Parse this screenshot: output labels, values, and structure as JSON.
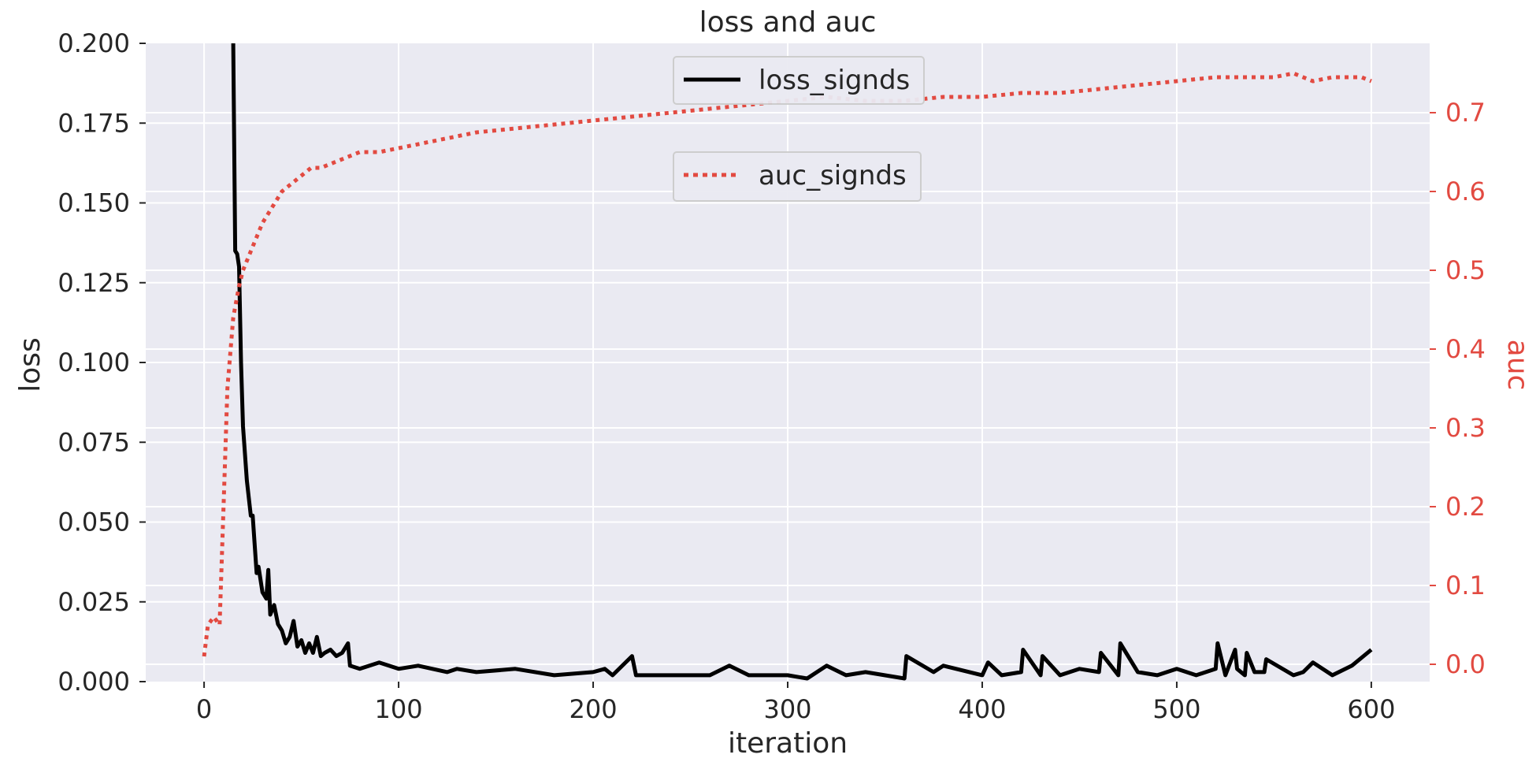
{
  "chart_data": {
    "type": "line",
    "title": "loss and auc",
    "xlabel": "iteration",
    "ylabel": "loss",
    "y2label": "auc",
    "xlim": [
      -30,
      630
    ],
    "ylim": [
      0,
      0.2
    ],
    "y2lim": [
      -0.022,
      0.788
    ],
    "xticks": [
      0,
      100,
      200,
      300,
      400,
      500,
      600
    ],
    "yticks": [
      0.0,
      0.025,
      0.05,
      0.075,
      0.1,
      0.125,
      0.15,
      0.175,
      0.2
    ],
    "ytick_labels": [
      "0.000",
      "0.025",
      "0.050",
      "0.075",
      "0.100",
      "0.125",
      "0.150",
      "0.175",
      "0.200"
    ],
    "y2ticks": [
      0.0,
      0.1,
      0.2,
      0.3,
      0.4,
      0.5,
      0.6,
      0.7
    ],
    "y2tick_labels": [
      "0.0",
      "0.1",
      "0.2",
      "0.3",
      "0.4",
      "0.5",
      "0.6",
      "0.7"
    ],
    "grid": true,
    "colors": {
      "background": "#eaeaf2",
      "grid": "#ffffff",
      "loss": "#000000",
      "auc": "#e24a41",
      "text": "#262626"
    },
    "series": [
      {
        "name": "loss_signds",
        "axis": "left",
        "style": "solid",
        "x": [
          15,
          16,
          17,
          18,
          19,
          20,
          22,
          24,
          25,
          26,
          27,
          28,
          30,
          32,
          33,
          34,
          36,
          38,
          40,
          42,
          44,
          46,
          48,
          50,
          52,
          54,
          56,
          58,
          60,
          62,
          65,
          68,
          71,
          74,
          75,
          80,
          90,
          100,
          110,
          125,
          130,
          140,
          160,
          180,
          200,
          206,
          210,
          220,
          222,
          240,
          260,
          270,
          280,
          300,
          310,
          320,
          330,
          340,
          360,
          361,
          375,
          380,
          400,
          403,
          410,
          420,
          421,
          430,
          431,
          440,
          450,
          460,
          461,
          470,
          471,
          480,
          490,
          500,
          510,
          520,
          521,
          525,
          530,
          531,
          535,
          536,
          540,
          545,
          546,
          560,
          565,
          570,
          580,
          590,
          600
        ],
        "y": [
          0.2,
          0.135,
          0.134,
          0.13,
          0.1,
          0.08,
          0.063,
          0.052,
          0.052,
          0.043,
          0.034,
          0.036,
          0.028,
          0.026,
          0.035,
          0.021,
          0.024,
          0.018,
          0.016,
          0.012,
          0.014,
          0.019,
          0.011,
          0.013,
          0.009,
          0.012,
          0.009,
          0.014,
          0.008,
          0.009,
          0.01,
          0.008,
          0.009,
          0.012,
          0.005,
          0.004,
          0.006,
          0.004,
          0.005,
          0.003,
          0.004,
          0.003,
          0.004,
          0.002,
          0.003,
          0.004,
          0.002,
          0.008,
          0.002,
          0.002,
          0.002,
          0.005,
          0.002,
          0.002,
          0.001,
          0.005,
          0.002,
          0.003,
          0.001,
          0.008,
          0.003,
          0.005,
          0.002,
          0.006,
          0.002,
          0.003,
          0.01,
          0.002,
          0.008,
          0.002,
          0.004,
          0.003,
          0.009,
          0.002,
          0.012,
          0.003,
          0.002,
          0.004,
          0.002,
          0.004,
          0.012,
          0.002,
          0.01,
          0.004,
          0.002,
          0.009,
          0.003,
          0.003,
          0.007,
          0.002,
          0.003,
          0.006,
          0.002,
          0.005,
          0.01
        ]
      },
      {
        "name": "auc_signds",
        "axis": "right",
        "style": "dotted",
        "x": [
          0,
          2,
          5,
          8,
          10,
          12,
          15,
          18,
          20,
          25,
          30,
          35,
          40,
          45,
          50,
          55,
          60,
          70,
          80,
          90,
          100,
          120,
          140,
          160,
          180,
          200,
          220,
          240,
          260,
          280,
          300,
          320,
          340,
          360,
          380,
          400,
          420,
          440,
          460,
          480,
          500,
          520,
          540,
          550,
          560,
          570,
          580,
          590,
          595,
          600
        ],
        "y": [
          0.01,
          0.05,
          0.06,
          0.05,
          0.2,
          0.35,
          0.44,
          0.48,
          0.5,
          0.53,
          0.56,
          0.58,
          0.6,
          0.61,
          0.62,
          0.63,
          0.63,
          0.64,
          0.65,
          0.65,
          0.655,
          0.665,
          0.675,
          0.68,
          0.685,
          0.69,
          0.695,
          0.7,
          0.705,
          0.71,
          0.715,
          0.72,
          0.715,
          0.715,
          0.72,
          0.72,
          0.725,
          0.725,
          0.73,
          0.735,
          0.74,
          0.745,
          0.745,
          0.745,
          0.75,
          0.74,
          0.745,
          0.745,
          0.745,
          0.74
        ]
      }
    ],
    "legend": [
      {
        "label": "loss_signds",
        "series": 0
      },
      {
        "label": "auc_signds",
        "series": 1
      }
    ],
    "legend_placement": "upper-center"
  }
}
